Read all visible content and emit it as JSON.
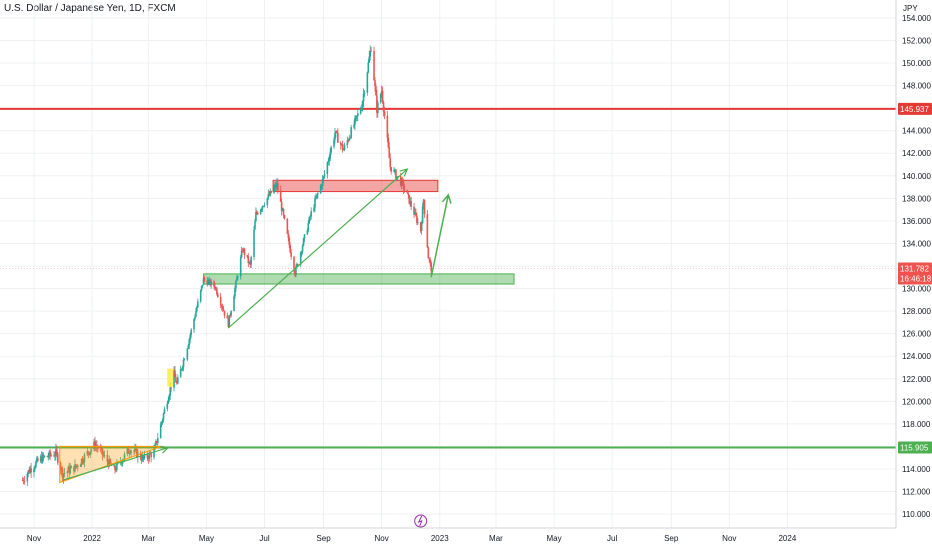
{
  "header": {
    "title": "U.S. Dollar / Japanese Yen, 1D, FXCM"
  },
  "colors": {
    "up": "#26a69a",
    "down": "#ef5350",
    "support": "#4caf50",
    "resistance": "#e53935",
    "triangle": "#ff9800",
    "current": "#ef5350"
  },
  "chart_data": {
    "type": "candlestick",
    "currency_label": "JPY",
    "yaxis_ticks": [
      154,
      152,
      150,
      148,
      146,
      144,
      142,
      140,
      138,
      136,
      134,
      132,
      130,
      128,
      126,
      124,
      122,
      120,
      118,
      116,
      114,
      112,
      110
    ],
    "yaxis_tick_labels": [
      "154.000",
      "152.000",
      "150.000",
      "148.000",
      "146.000",
      "144.000",
      "142.000",
      "140.000",
      "138.000",
      "136.000",
      "134.000",
      "132.000",
      "130.000",
      "128.000",
      "126.000",
      "124.000",
      "122.000",
      "120.000",
      "118.000",
      "116.000",
      "114.000",
      "112.000",
      "110.000"
    ],
    "ylim": [
      108.5,
      155.5
    ],
    "xaxis_labels": [
      "Nov",
      "2022",
      "Mar",
      "May",
      "Jul",
      "Sep",
      "Nov",
      "2023",
      "Mar",
      "May",
      "Jul",
      "Sep",
      "Nov",
      "2024"
    ],
    "xaxis_dates": [
      "2021-11-01",
      "2022-01-01",
      "2022-03-01",
      "2022-05-01",
      "2022-07-01",
      "2022-09-01",
      "2022-11-01",
      "2023-01-01",
      "2023-03-01",
      "2023-05-01",
      "2023-07-01",
      "2023-09-01",
      "2023-11-01",
      "2024-01-01"
    ],
    "price_path": [
      [
        "2021-10-20",
        113.0
      ],
      [
        "2021-10-28",
        114.0
      ],
      [
        "2021-11-08",
        114.9
      ],
      [
        "2021-11-24",
        115.4
      ],
      [
        "2021-12-01",
        113.6
      ],
      [
        "2021-12-15",
        114.2
      ],
      [
        "2022-01-04",
        116.2
      ],
      [
        "2022-01-24",
        113.9
      ],
      [
        "2022-02-10",
        115.8
      ],
      [
        "2022-02-24",
        114.9
      ],
      [
        "2022-03-07",
        115.5
      ],
      [
        "2022-03-18",
        119.2
      ],
      [
        "2022-03-28",
        122.4
      ],
      [
        "2022-03-31",
        121.5
      ],
      [
        "2022-04-12",
        125.2
      ],
      [
        "2022-04-28",
        130.8
      ],
      [
        "2022-05-10",
        130.2
      ],
      [
        "2022-05-24",
        126.9
      ],
      [
        "2022-06-08",
        133.5
      ],
      [
        "2022-06-16",
        132.0
      ],
      [
        "2022-06-22",
        136.6
      ],
      [
        "2022-07-14",
        139.2
      ],
      [
        "2022-08-02",
        131.4
      ],
      [
        "2022-08-20",
        137.0
      ],
      [
        "2022-09-01",
        139.8
      ],
      [
        "2022-09-13",
        143.8
      ],
      [
        "2022-09-22",
        142.3
      ],
      [
        "2022-10-11",
        146.2
      ],
      [
        "2022-10-21",
        151.5
      ],
      [
        "2022-10-27",
        145.9
      ],
      [
        "2022-11-01",
        147.6
      ],
      [
        "2022-11-10",
        140.8
      ],
      [
        "2022-11-23",
        139.2
      ],
      [
        "2022-11-30",
        137.8
      ],
      [
        "2022-12-12",
        135.2
      ],
      [
        "2022-12-15",
        137.9
      ],
      [
        "2022-12-20",
        132.8
      ],
      [
        "2022-12-23",
        131.78
      ]
    ],
    "horizontal_levels": [
      {
        "value": 145.937,
        "label": "145.937",
        "color": "#e53935"
      },
      {
        "value": 115.905,
        "label": "115.905",
        "color": "#4caf50"
      }
    ],
    "current_price": {
      "value": 131.782,
      "label": "131.782",
      "countdown": "16:46:18"
    },
    "zones": [
      {
        "type": "resistance",
        "from": "2022-07-10",
        "to": "2022-12-30",
        "low": 138.6,
        "high": 139.6
      },
      {
        "type": "support",
        "from": "2022-04-28",
        "to": "2023-03-20",
        "low": 130.4,
        "high": 131.3
      }
    ],
    "triangle": {
      "points": [
        [
          "2021-11-28",
          116.0
        ],
        [
          "2022-03-15",
          116.0
        ],
        [
          "2021-11-28",
          112.8
        ]
      ]
    },
    "trendlines": [
      {
        "from": [
          "2021-12-01",
          113.0
        ],
        "to": [
          "2022-03-22",
          115.9
        ]
      },
      {
        "from": [
          "2022-05-24",
          126.5
        ],
        "to": [
          "2022-11-28",
          140.6
        ]
      }
    ],
    "projection_arrow": {
      "from": [
        "2022-12-23",
        131.0
      ],
      "to": [
        "2023-01-10",
        138.3
      ]
    },
    "highlight_candle": {
      "date": "2022-03-24",
      "low": 121.3,
      "high": 122.9
    }
  }
}
